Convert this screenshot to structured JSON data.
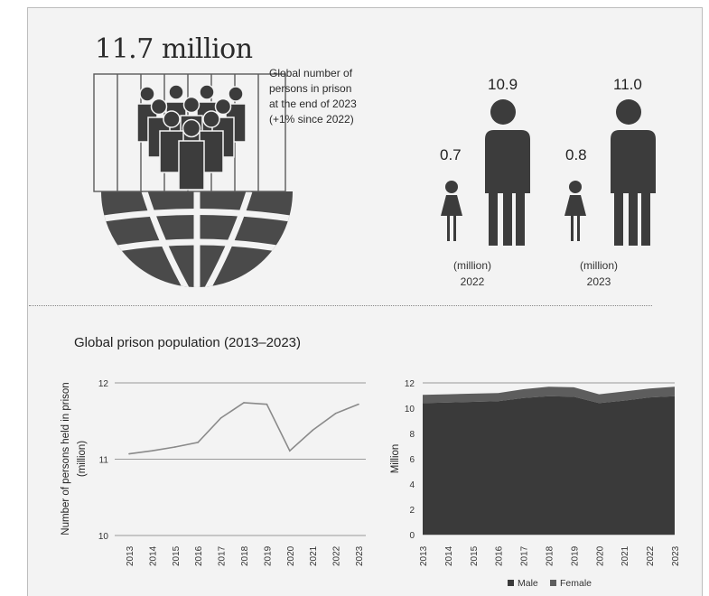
{
  "headline": {
    "total": "11.7 million",
    "description_lines": [
      "Global number of",
      "persons in prison",
      "at the end of 2023",
      "(+1% since 2022)"
    ]
  },
  "stats": {
    "y2022": {
      "female": "0.7",
      "male": "10.9",
      "unit": "(million)",
      "year": "2022"
    },
    "y2023": {
      "female": "0.8",
      "male": "11.0",
      "unit": "(million)",
      "year": "2023"
    }
  },
  "section_title": "Global prison population (2013–2023)",
  "colors": {
    "figure": "#3c3c3c",
    "male": "#3a3a3a",
    "female": "#5d5d5d",
    "line": "#8a8a8a"
  },
  "icons": [
    "crowd-behind-bars-icon",
    "globe-icon",
    "female-person-icon",
    "male-person-icon"
  ],
  "chart_data": [
    {
      "type": "line",
      "title": "",
      "xlabel": "",
      "ylabel": "Number of persons held in prison (million)",
      "x": [
        "2013",
        "2014",
        "2015",
        "2016",
        "2017",
        "2018",
        "2019",
        "2020",
        "2021",
        "2022",
        "2023"
      ],
      "series": [
        {
          "values": [
            11.07,
            11.11,
            11.16,
            11.22,
            11.54,
            11.74,
            11.72,
            11.11,
            11.38,
            11.6,
            11.72
          ]
        }
      ],
      "ylim": [
        10,
        12
      ],
      "yticks": [
        "10",
        "11",
        "12"
      ],
      "grid": true
    },
    {
      "type": "area",
      "title": "",
      "xlabel": "",
      "ylabel": "Million",
      "x": [
        "2013",
        "2014",
        "2015",
        "2016",
        "2017",
        "2018",
        "2019",
        "2020",
        "2021",
        "2022",
        "2023"
      ],
      "series": [
        {
          "name": "Male",
          "values": [
            10.4,
            10.45,
            10.5,
            10.55,
            10.8,
            10.95,
            10.9,
            10.4,
            10.6,
            10.85,
            10.95
          ]
        },
        {
          "name": "Female",
          "values": [
            0.65,
            0.65,
            0.65,
            0.65,
            0.7,
            0.75,
            0.75,
            0.7,
            0.72,
            0.7,
            0.75
          ]
        }
      ],
      "stacked": true,
      "ylim": [
        0,
        12
      ],
      "yticks": [
        "0",
        "2",
        "4",
        "6",
        "8",
        "10",
        "12"
      ],
      "legend": "bottom",
      "grid": true
    }
  ]
}
